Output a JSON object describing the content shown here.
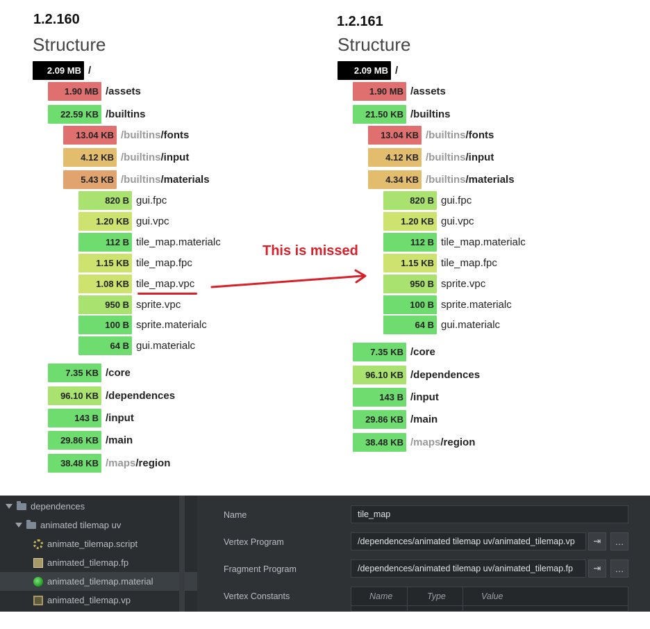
{
  "left": {
    "version": "1.2.160",
    "title": "Structure",
    "rows": [
      {
        "size": "2.09 MB",
        "prefix": "",
        "name": "/",
        "kind": "dir",
        "color": "#000000",
        "text": "#ffffff"
      },
      {
        "size": "1.90 MB",
        "prefix": "",
        "name": "/assets",
        "kind": "dir",
        "color": "#e07070",
        "text": "#222222"
      },
      {
        "size": "22.59 KB",
        "prefix": "",
        "name": "/builtins",
        "kind": "dir",
        "color": "#6fdc6f",
        "text": "#222222"
      },
      {
        "size": "13.04 KB",
        "prefix": "/builtins",
        "name": "/fonts",
        "kind": "dir",
        "color": "#e07070",
        "text": "#222222"
      },
      {
        "size": "4.12 KB",
        "prefix": "/builtins",
        "name": "/input",
        "kind": "dir",
        "color": "#e2bd6e",
        "text": "#222222"
      },
      {
        "size": "5.43 KB",
        "prefix": "/builtins",
        "name": "/materials",
        "kind": "dir",
        "color": "#e2a46e",
        "text": "#222222"
      },
      {
        "size": "820 B",
        "prefix": "",
        "name": "gui.fpc",
        "kind": "file",
        "color": "#a9e26f",
        "text": "#222222"
      },
      {
        "size": "1.20 KB",
        "prefix": "",
        "name": "gui.vpc",
        "kind": "file",
        "color": "#cde26f",
        "text": "#222222"
      },
      {
        "size": "112 B",
        "prefix": "",
        "name": "tile_map.materialc",
        "kind": "file",
        "color": "#6fdc6f",
        "text": "#222222"
      },
      {
        "size": "1.15 KB",
        "prefix": "",
        "name": "tile_map.fpc",
        "kind": "file",
        "color": "#cde26f",
        "text": "#222222"
      },
      {
        "size": "1.08 KB",
        "prefix": "",
        "name": "tile_map.vpc",
        "kind": "file",
        "color": "#cde26f",
        "text": "#222222"
      },
      {
        "size": "950 B",
        "prefix": "",
        "name": "sprite.vpc",
        "kind": "file",
        "color": "#a9e26f",
        "text": "#222222"
      },
      {
        "size": "100 B",
        "prefix": "",
        "name": "sprite.materialc",
        "kind": "file",
        "color": "#6fdc6f",
        "text": "#222222"
      },
      {
        "size": "64 B",
        "prefix": "",
        "name": "gui.materialc",
        "kind": "file",
        "color": "#6fdc6f",
        "text": "#222222"
      },
      {
        "size": "7.35 KB",
        "prefix": "",
        "name": "/core",
        "kind": "dir",
        "color": "#6fdc6f",
        "text": "#222222"
      },
      {
        "size": "96.10 KB",
        "prefix": "",
        "name": "/dependences",
        "kind": "dir",
        "color": "#a9e26f",
        "text": "#222222"
      },
      {
        "size": "143 B",
        "prefix": "",
        "name": "/input",
        "kind": "dir",
        "color": "#6fdc6f",
        "text": "#222222"
      },
      {
        "size": "29.86 KB",
        "prefix": "",
        "name": "/main",
        "kind": "dir",
        "color": "#6fdc6f",
        "text": "#222222"
      },
      {
        "size": "38.48 KB",
        "prefix": "/maps",
        "name": "/region",
        "kind": "dir",
        "color": "#6fdc6f",
        "text": "#222222"
      }
    ]
  },
  "right": {
    "version": "1.2.161",
    "title": "Structure",
    "rows": [
      {
        "size": "2.09 MB",
        "prefix": "",
        "name": "/",
        "kind": "dir",
        "color": "#000000",
        "text": "#ffffff"
      },
      {
        "size": "1.90 MB",
        "prefix": "",
        "name": "/assets",
        "kind": "dir",
        "color": "#e07070",
        "text": "#222222"
      },
      {
        "size": "21.50 KB",
        "prefix": "",
        "name": "/builtins",
        "kind": "dir",
        "color": "#6fdc6f",
        "text": "#222222"
      },
      {
        "size": "13.04 KB",
        "prefix": "/builtins",
        "name": "/fonts",
        "kind": "dir",
        "color": "#e07070",
        "text": "#222222"
      },
      {
        "size": "4.12 KB",
        "prefix": "/builtins",
        "name": "/input",
        "kind": "dir",
        "color": "#e2bd6e",
        "text": "#222222"
      },
      {
        "size": "4.34 KB",
        "prefix": "/builtins",
        "name": "/materials",
        "kind": "dir",
        "color": "#e2bd6e",
        "text": "#222222"
      },
      {
        "size": "820 B",
        "prefix": "",
        "name": "gui.fpc",
        "kind": "file",
        "color": "#a9e26f",
        "text": "#222222"
      },
      {
        "size": "1.20 KB",
        "prefix": "",
        "name": "gui.vpc",
        "kind": "file",
        "color": "#cde26f",
        "text": "#222222"
      },
      {
        "size": "112 B",
        "prefix": "",
        "name": "tile_map.materialc",
        "kind": "file",
        "color": "#6fdc6f",
        "text": "#222222"
      },
      {
        "size": "1.15 KB",
        "prefix": "",
        "name": "tile_map.fpc",
        "kind": "file",
        "color": "#cde26f",
        "text": "#222222"
      },
      {
        "size": "950 B",
        "prefix": "",
        "name": "sprite.vpc",
        "kind": "file",
        "color": "#a9e26f",
        "text": "#222222"
      },
      {
        "size": "100 B",
        "prefix": "",
        "name": "sprite.materialc",
        "kind": "file",
        "color": "#6fdc6f",
        "text": "#222222"
      },
      {
        "size": "64 B",
        "prefix": "",
        "name": "gui.materialc",
        "kind": "file",
        "color": "#6fdc6f",
        "text": "#222222"
      },
      {
        "size": "7.35 KB",
        "prefix": "",
        "name": "/core",
        "kind": "dir",
        "color": "#6fdc6f",
        "text": "#222222"
      },
      {
        "size": "96.10 KB",
        "prefix": "",
        "name": "/dependences",
        "kind": "dir",
        "color": "#a9e26f",
        "text": "#222222"
      },
      {
        "size": "143 B",
        "prefix": "",
        "name": "/input",
        "kind": "dir",
        "color": "#6fdc6f",
        "text": "#222222"
      },
      {
        "size": "29.86 KB",
        "prefix": "",
        "name": "/main",
        "kind": "dir",
        "color": "#6fdc6f",
        "text": "#222222"
      },
      {
        "size": "38.48 KB",
        "prefix": "/maps",
        "name": "/region",
        "kind": "dir",
        "color": "#6fdc6f",
        "text": "#222222"
      }
    ]
  },
  "annotation": {
    "text": "This is missed",
    "color": "#d6212b"
  },
  "editor": {
    "tree": [
      {
        "label": "dependences",
        "icon": "folder-icon"
      },
      {
        "label": "animated tilemap uv",
        "icon": "folder-icon"
      },
      {
        "label": "animate_tilemap.script",
        "icon": "script-gear-icon"
      },
      {
        "label": "animated_tilemap.fp",
        "icon": "fragment-program-icon"
      },
      {
        "label": "animated_tilemap.material",
        "icon": "material-icon",
        "selected": true
      },
      {
        "label": "animated_tilemap.vp",
        "icon": "vertex-program-icon"
      }
    ],
    "props": {
      "name_label": "Name",
      "name_value": "tile_map",
      "vp_label": "Vertex Program",
      "vp_value": "/dependences/animated tilemap uv/animated_tilemap.vp",
      "fp_label": "Fragment Program",
      "fp_value": "/dependences/animated tilemap uv/animated_tilemap.fp",
      "vc_label": "Vertex Constants",
      "goto_glyph": "⇥",
      "more_glyph": "…",
      "columns": [
        "Name",
        "Type",
        "Value"
      ]
    }
  }
}
